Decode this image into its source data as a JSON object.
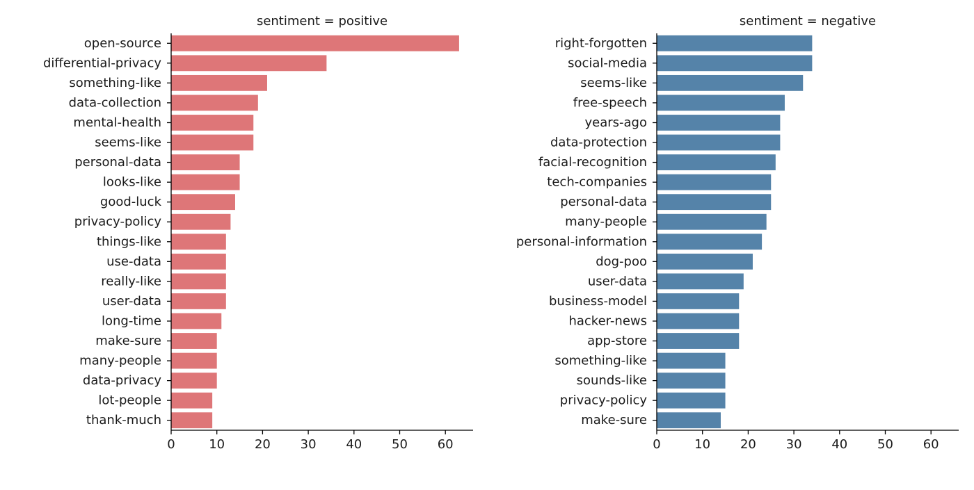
{
  "chart_data": [
    {
      "type": "bar",
      "orientation": "horizontal",
      "title": "sentiment = positive",
      "xlabel": "",
      "ylabel": "",
      "xlim": [
        0,
        66
      ],
      "xticks": [
        "0",
        "10",
        "20",
        "30",
        "40",
        "50",
        "60"
      ],
      "color": "#de7678",
      "categories": [
        "open-source",
        "differential-privacy",
        "something-like",
        "data-collection",
        "mental-health",
        "seems-like",
        "personal-data",
        "looks-like",
        "good-luck",
        "privacy-policy",
        "things-like",
        "use-data",
        "really-like",
        "user-data",
        "long-time",
        "make-sure",
        "many-people",
        "data-privacy",
        "lot-people",
        "thank-much"
      ],
      "values": [
        63,
        34,
        21,
        19,
        18,
        18,
        15,
        15,
        14,
        13,
        12,
        12,
        12,
        12,
        11,
        10,
        10,
        10,
        9,
        9
      ]
    },
    {
      "type": "bar",
      "orientation": "horizontal",
      "title": "sentiment = negative",
      "xlabel": "",
      "ylabel": "",
      "xlim": [
        0,
        66
      ],
      "xticks": [
        "0",
        "10",
        "20",
        "30",
        "40",
        "50",
        "60"
      ],
      "color": "#5583a9",
      "categories": [
        "right-forgotten",
        "social-media",
        "seems-like",
        "free-speech",
        "years-ago",
        "data-protection",
        "facial-recognition",
        "tech-companies",
        "personal-data",
        "many-people",
        "personal-information",
        "dog-poo",
        "user-data",
        "business-model",
        "hacker-news",
        "app-store",
        "something-like",
        "sounds-like",
        "privacy-policy",
        "make-sure"
      ],
      "values": [
        34,
        34,
        32,
        28,
        27,
        27,
        26,
        25,
        25,
        24,
        23,
        21,
        19,
        18,
        18,
        18,
        15,
        15,
        15,
        14
      ]
    }
  ]
}
